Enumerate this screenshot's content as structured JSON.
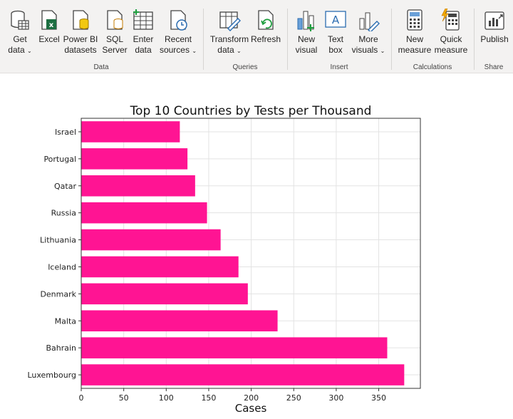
{
  "ribbon": {
    "groups": {
      "data": "Data",
      "queries": "Queries",
      "insert": "Insert",
      "calculations": "Calculations",
      "share": "Share"
    },
    "buttons": {
      "get_data": [
        "Get",
        "data"
      ],
      "excel": [
        "Excel"
      ],
      "power_bi_datasets": [
        "Power BI",
        "datasets"
      ],
      "sql_server": [
        "SQL",
        "Server"
      ],
      "enter_data": [
        "Enter",
        "data"
      ],
      "recent_sources": [
        "Recent",
        "sources"
      ],
      "transform_data": [
        "Transform",
        "data"
      ],
      "refresh": [
        "Refresh"
      ],
      "new_visual": [
        "New",
        "visual"
      ],
      "text_box": [
        "Text",
        "box"
      ],
      "more_visuals": [
        "More",
        "visuals"
      ],
      "new_measure": [
        "New",
        "measure"
      ],
      "quick_measure": [
        "Quick",
        "measure"
      ],
      "publish": [
        "Publish"
      ]
    }
  },
  "chart_data": {
    "type": "bar",
    "orientation": "horizontal",
    "title": "Top 10 Countries by Tests per Thousand",
    "xlabel": "Cases",
    "ylabel": "",
    "categories": [
      "Israel",
      "Portugal",
      "Qatar",
      "Russia",
      "Lithuania",
      "Iceland",
      "Denmark",
      "Malta",
      "Bahrain",
      "Luxembourg"
    ],
    "values": [
      116,
      125,
      134,
      148,
      164,
      185,
      196,
      231,
      360,
      380
    ],
    "xlim": [
      0,
      399
    ],
    "xticks": [
      0,
      50,
      100,
      150,
      200,
      250,
      300,
      350
    ],
    "grid": true,
    "bar_color": "#ff1493"
  }
}
